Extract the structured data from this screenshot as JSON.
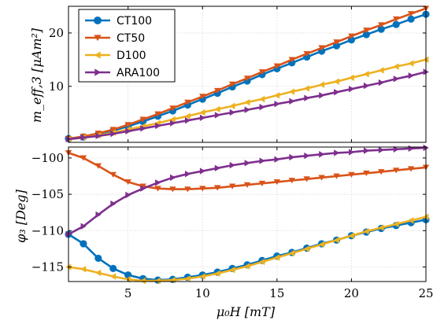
{
  "chart_data": [
    {
      "type": "line",
      "panel": "top",
      "ylabel": "m_eff,3 [μAm²]",
      "xlim": [
        1,
        25
      ],
      "ylim": [
        -0.5,
        25
      ],
      "yticks": [
        10,
        20
      ],
      "grid": true,
      "legend": "top-left",
      "x": [
        1,
        2,
        3,
        4,
        5,
        6,
        7,
        8,
        9,
        10,
        11,
        12,
        13,
        14,
        15,
        16,
        17,
        18,
        19,
        20,
        21,
        22,
        23,
        24,
        25
      ],
      "series": [
        {
          "name": "CT100",
          "color": "#0072bd",
          "marker": "circle",
          "values": [
            0.2,
            0.5,
            1.0,
            1.7,
            2.5,
            3.4,
            4.4,
            5.4,
            6.5,
            7.6,
            8.7,
            9.9,
            11.0,
            12.2,
            13.3,
            14.4,
            15.5,
            16.6,
            17.6,
            18.7,
            19.7,
            20.7,
            21.6,
            22.6,
            23.5
          ]
        },
        {
          "name": "CT50",
          "color": "#d95319",
          "marker": "triangle-down",
          "values": [
            0.2,
            0.6,
            1.2,
            1.9,
            2.8,
            3.8,
            4.8,
            5.9,
            7.0,
            8.1,
            9.2,
            10.4,
            11.5,
            12.7,
            13.8,
            15.0,
            16.1,
            17.2,
            18.3,
            19.4,
            20.5,
            21.5,
            22.6,
            23.6,
            24.6
          ]
        },
        {
          "name": "D100",
          "color": "#edb120",
          "marker": "triangle-left",
          "values": [
            0.1,
            0.4,
            0.8,
            1.3,
            1.9,
            2.5,
            3.1,
            3.8,
            4.4,
            5.1,
            5.7,
            6.3,
            7.0,
            7.6,
            8.3,
            9.0,
            9.6,
            10.3,
            10.9,
            11.6,
            12.3,
            13.0,
            13.7,
            14.3,
            15.0
          ]
        },
        {
          "name": "ARA100",
          "color": "#7e2f8e",
          "marker": "triangle-right",
          "values": [
            0.1,
            0.4,
            0.7,
            1.1,
            1.6,
            2.1,
            2.6,
            3.1,
            3.6,
            4.1,
            4.6,
            5.1,
            5.6,
            6.1,
            6.7,
            7.2,
            7.8,
            8.3,
            8.9,
            9.5,
            10.1,
            10.7,
            11.4,
            12.0,
            12.7
          ]
        }
      ]
    },
    {
      "type": "line",
      "panel": "bottom",
      "xlabel": "μ₀H [mT]",
      "ylabel": "φ₃ [Deg]",
      "xlim": [
        1,
        25
      ],
      "ylim": [
        -117,
        -98.5
      ],
      "xticks": [
        5,
        10,
        15,
        20,
        25
      ],
      "yticks": [
        -100,
        -105,
        -110,
        -115
      ],
      "grid": true,
      "x": [
        1,
        2,
        3,
        4,
        5,
        6,
        7,
        8,
        9,
        10,
        11,
        12,
        13,
        14,
        15,
        16,
        17,
        18,
        19,
        20,
        21,
        22,
        23,
        24,
        25
      ],
      "series": [
        {
          "name": "CT100",
          "color": "#0072bd",
          "marker": "circle",
          "values": [
            -110.5,
            -111.8,
            -113.8,
            -115.2,
            -116.1,
            -116.6,
            -116.8,
            -116.7,
            -116.4,
            -116.1,
            -115.7,
            -115.2,
            -114.7,
            -114.1,
            -113.5,
            -113.0,
            -112.4,
            -111.8,
            -111.3,
            -110.7,
            -110.2,
            -109.7,
            -109.3,
            -108.9,
            -108.5
          ]
        },
        {
          "name": "CT50",
          "color": "#d95319",
          "marker": "triangle-down",
          "values": [
            -99.3,
            -100.0,
            -101.1,
            -102.3,
            -103.3,
            -103.9,
            -104.2,
            -104.3,
            -104.3,
            -104.2,
            -104.1,
            -103.9,
            -103.7,
            -103.5,
            -103.3,
            -103.1,
            -102.9,
            -102.7,
            -102.5,
            -102.3,
            -102.1,
            -101.9,
            -101.7,
            -101.5,
            -101.3
          ]
        },
        {
          "name": "D100",
          "color": "#edb120",
          "marker": "triangle-left",
          "values": [
            -115.0,
            -115.3,
            -115.8,
            -116.3,
            -116.7,
            -116.9,
            -116.9,
            -116.8,
            -116.6,
            -116.3,
            -115.9,
            -115.4,
            -114.9,
            -114.3,
            -113.7,
            -113.1,
            -112.5,
            -111.9,
            -111.3,
            -110.7,
            -110.1,
            -109.6,
            -109.1,
            -108.6,
            -108.1
          ]
        },
        {
          "name": "ARA100",
          "color": "#7e2f8e",
          "marker": "triangle-right",
          "values": [
            -110.5,
            -109.4,
            -107.8,
            -106.3,
            -105.1,
            -104.2,
            -103.4,
            -102.7,
            -102.2,
            -101.8,
            -101.4,
            -101.0,
            -100.7,
            -100.4,
            -100.2,
            -99.9,
            -99.7,
            -99.5,
            -99.3,
            -99.2,
            -99.0,
            -98.9,
            -98.8,
            -98.7,
            -98.6
          ]
        }
      ]
    }
  ]
}
